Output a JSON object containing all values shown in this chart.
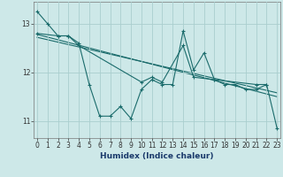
{
  "x": [
    0,
    1,
    2,
    3,
    4,
    5,
    6,
    7,
    8,
    9,
    10,
    11,
    12,
    13,
    14,
    15,
    16,
    17,
    18,
    19,
    20,
    21,
    22,
    23
  ],
  "line1": [
    13.25,
    13.0,
    12.75,
    12.75,
    12.6,
    11.75,
    11.1,
    11.1,
    11.3,
    11.05,
    11.65,
    11.85,
    11.75,
    11.75,
    12.85,
    12.05,
    12.4,
    11.85,
    11.75,
    11.75,
    11.65,
    11.65,
    11.75,
    10.85
  ],
  "line2_x": [
    0,
    2,
    3,
    4,
    10,
    11,
    12,
    14,
    15,
    17,
    21,
    22
  ],
  "line2_y": [
    12.8,
    12.75,
    12.75,
    12.55,
    11.8,
    11.9,
    11.8,
    12.55,
    11.9,
    11.85,
    11.75,
    11.75
  ],
  "line3": [
    [
      0,
      12.78
    ],
    [
      23,
      11.5
    ]
  ],
  "line4": [
    [
      0,
      12.72
    ],
    [
      23,
      11.58
    ]
  ],
  "ylim": [
    10.65,
    13.45
  ],
  "xlim": [
    -0.3,
    23.3
  ],
  "yticks": [
    11,
    12,
    13
  ],
  "xticks": [
    0,
    1,
    2,
    3,
    4,
    5,
    6,
    7,
    8,
    9,
    10,
    11,
    12,
    13,
    14,
    15,
    16,
    17,
    18,
    19,
    20,
    21,
    22,
    23
  ],
  "xlabel": "Humidex (Indice chaleur)",
  "bg_color": "#cde8e8",
  "grid_color": "#aacece",
  "line_color": "#1a6b6b",
  "marker": "+",
  "markersize": 3,
  "linewidth": 0.8,
  "tick_fontsize": 5.5,
  "xlabel_fontsize": 6.5
}
